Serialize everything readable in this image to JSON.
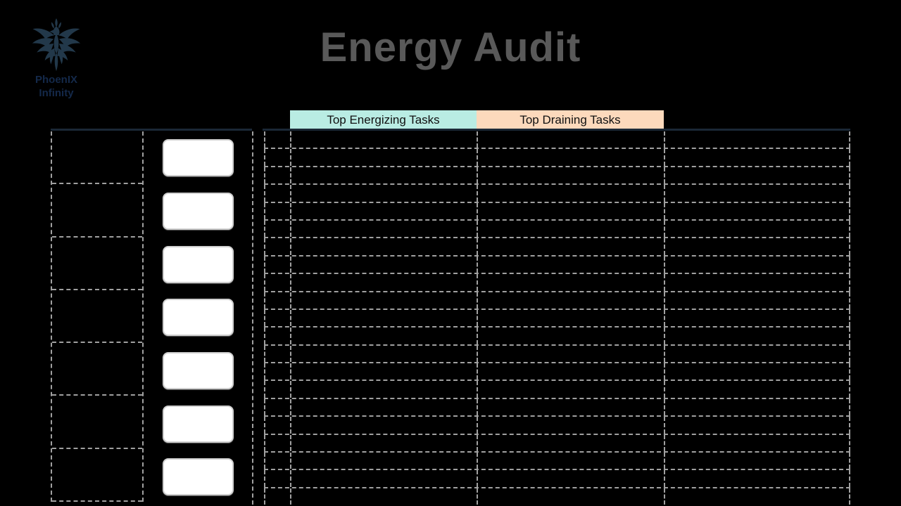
{
  "canvas": {
    "bg": "#000000"
  },
  "logo": {
    "icon": "phoenix-icon",
    "icon_color": "#22384a",
    "name_line1": "PhoenIX",
    "name_line2": "Infinity",
    "text_color": "#14294a"
  },
  "title": {
    "text": "Energy Audit",
    "color": "#595959"
  },
  "table_headers": [
    {
      "id": "energizing",
      "label": "Top Energizing Tasks",
      "bg_color": "#b9ece3"
    },
    {
      "id": "draining",
      "label": "Top Draining Tasks",
      "bg_color": "#fcd9bc"
    }
  ],
  "accent_line_color": "#1b2836",
  "grid": {
    "dash_color": "#a0a0a0",
    "card_color": "#ffffff",
    "left_table": {
      "rows": 7,
      "note_cards": 7
    },
    "right_table": {
      "rows": 21,
      "columns": 4
    }
  }
}
